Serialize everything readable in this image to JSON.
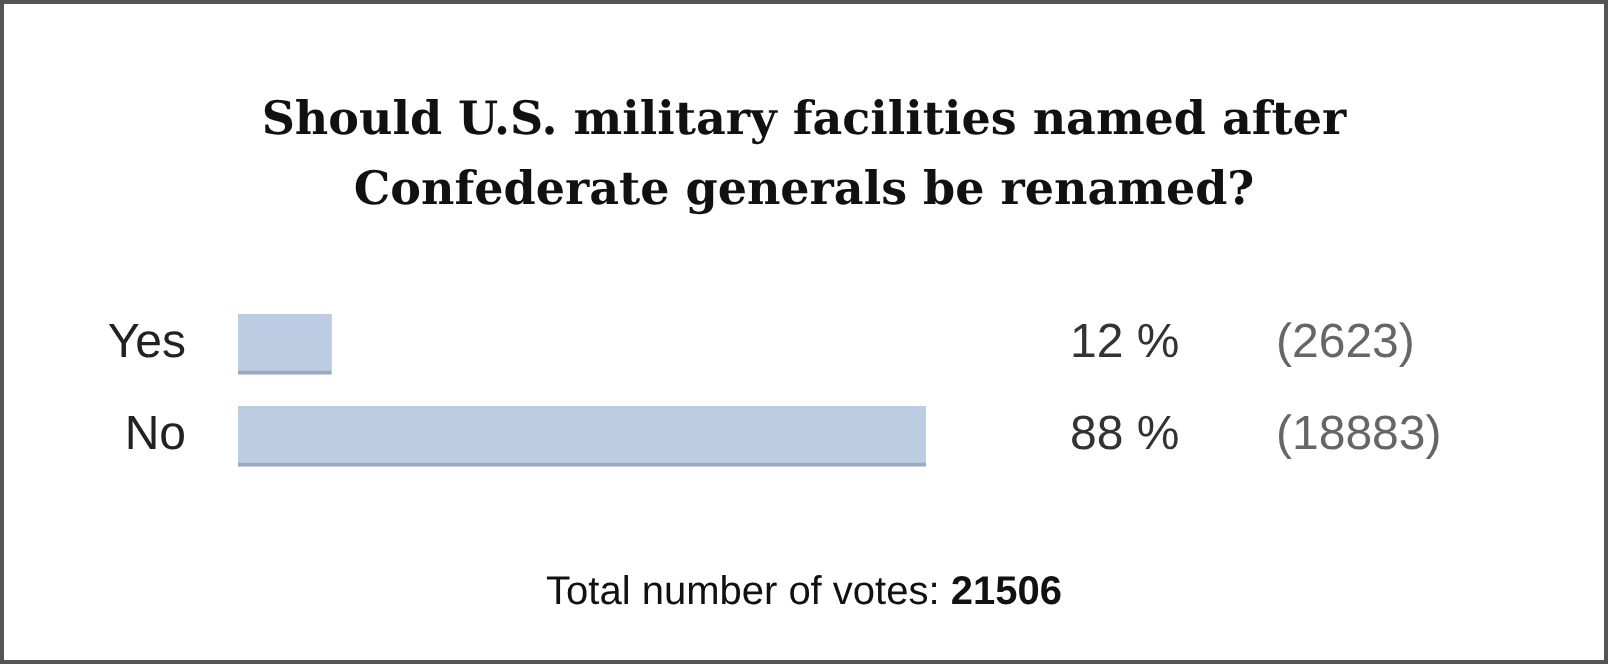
{
  "chart_data": {
    "type": "bar",
    "orientation": "horizontal",
    "title": "Should U.S. military facilities named after\nConfederate generals be renamed?",
    "categories": [
      "Yes",
      "No"
    ],
    "values": [
      12,
      88
    ],
    "color": "#bccde3",
    "value_labels": [
      "12 %",
      "88 %"
    ],
    "annotations": [
      "(2623)",
      "(18883)",
      "Total number of votes: 21506"
    ],
    "legend": false
  }
}
